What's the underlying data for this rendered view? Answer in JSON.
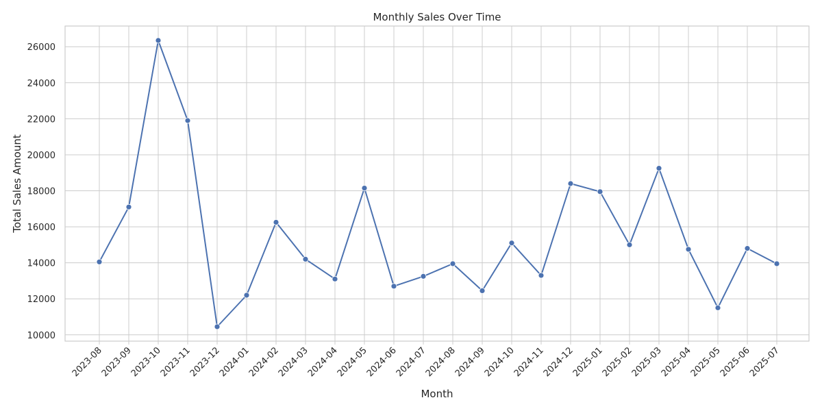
{
  "chart_data": {
    "type": "line",
    "title": "Monthly Sales Over Time",
    "xlabel": "Month",
    "ylabel": "Total Sales Amount",
    "categories": [
      "2023-08",
      "2023-09",
      "2023-10",
      "2023-11",
      "2023-12",
      "2024-01",
      "2024-02",
      "2024-03",
      "2024-04",
      "2024-05",
      "2024-06",
      "2024-07",
      "2024-08",
      "2024-09",
      "2024-10",
      "2024-11",
      "2024-12",
      "2025-01",
      "2025-02",
      "2025-03",
      "2025-04",
      "2025-05",
      "2025-06",
      "2025-07"
    ],
    "series": [
      {
        "values": [
          14050,
          17100,
          26350,
          21900,
          10450,
          12200,
          16250,
          14200,
          13100,
          18150,
          12700,
          13250,
          13950,
          12450,
          15100,
          13300,
          18400,
          17950,
          15000,
          19250,
          14750,
          11500,
          14800,
          13950
        ],
        "color": "#4c72b0"
      }
    ],
    "yticks": [
      10000,
      12000,
      14000,
      16000,
      18000,
      20000,
      22000,
      24000,
      26000
    ],
    "ylim": [
      9650,
      27150
    ],
    "grid": true,
    "x_tick_rotation": "45 degrees",
    "colors": {
      "grid": "#cccccc",
      "spine": "#cccccc",
      "line": "#4c72b0",
      "text": "#262626"
    }
  }
}
